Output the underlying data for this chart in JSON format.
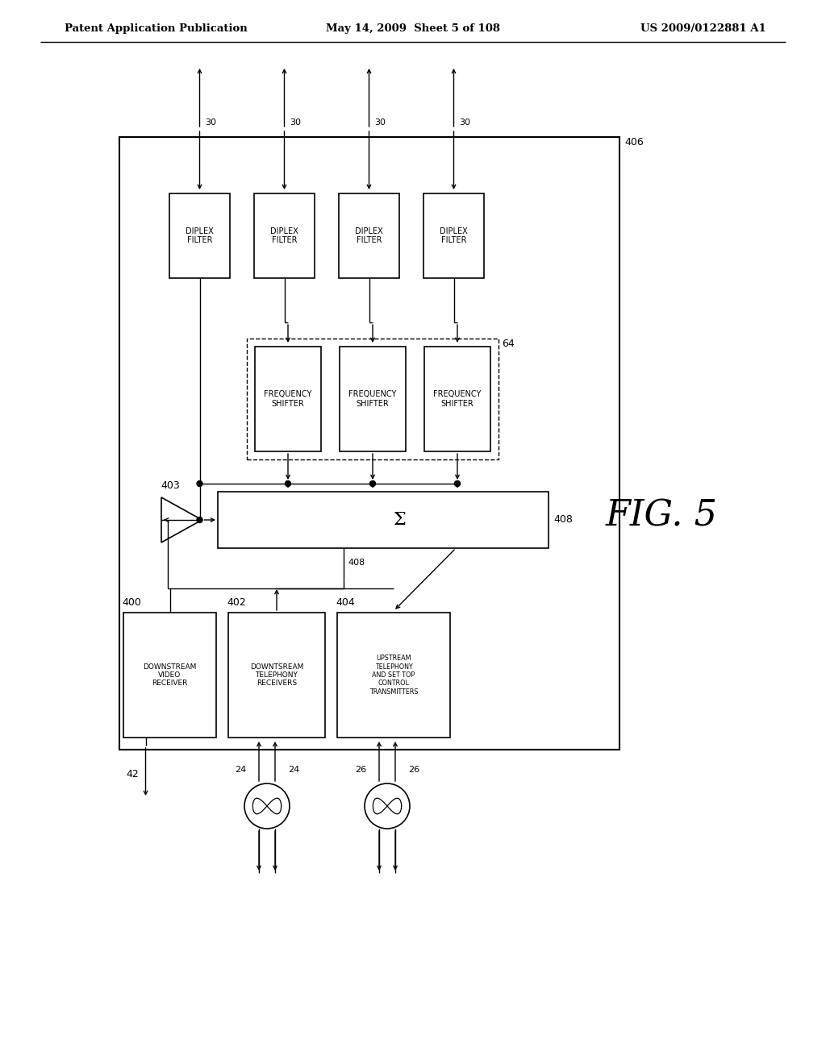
{
  "background_color": "#ffffff",
  "header_left": "Patent Application Publication",
  "header_center": "May 14, 2009  Sheet 5 of 108",
  "header_right": "US 2009/0122881 A1",
  "fig_label": "FIG. 5"
}
